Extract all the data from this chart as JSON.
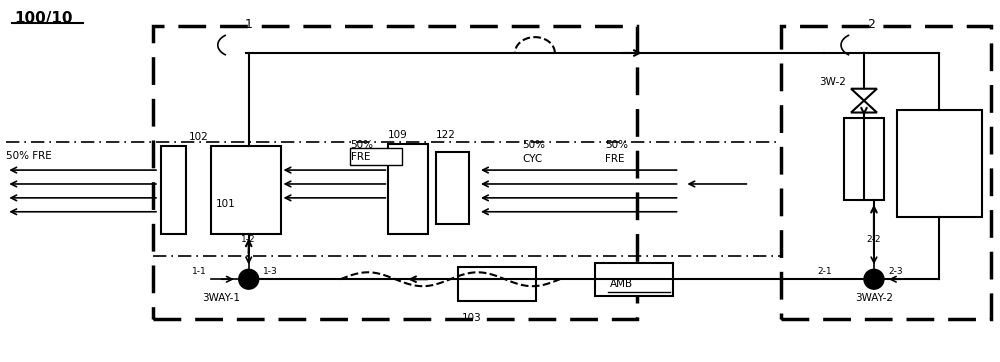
{
  "title": "100/10",
  "bg_color": "#ffffff",
  "line_color": "#000000",
  "labels": {
    "freq_left": "50% FRE",
    "freq_mid_pct": "50%",
    "freq_mid_fre": "FRE",
    "cyc_pct": "50%",
    "cyc_label": "CYC",
    "fre_right_pct": "50%",
    "fre_right_label": "FRE",
    "amb": "AMB",
    "three_way1": "3WAY-1",
    "three_way2": "3WAY-2",
    "three_w2": "3W-2",
    "comp1": "101",
    "heat1": "102",
    "comp103": "103",
    "n109": "109",
    "n122": "122",
    "label1": "1",
    "label2": "2",
    "p11": "1-1",
    "p12": "1-2",
    "p13": "1-3",
    "p21": "2-1",
    "p22": "2-2",
    "p23": "2-3"
  }
}
